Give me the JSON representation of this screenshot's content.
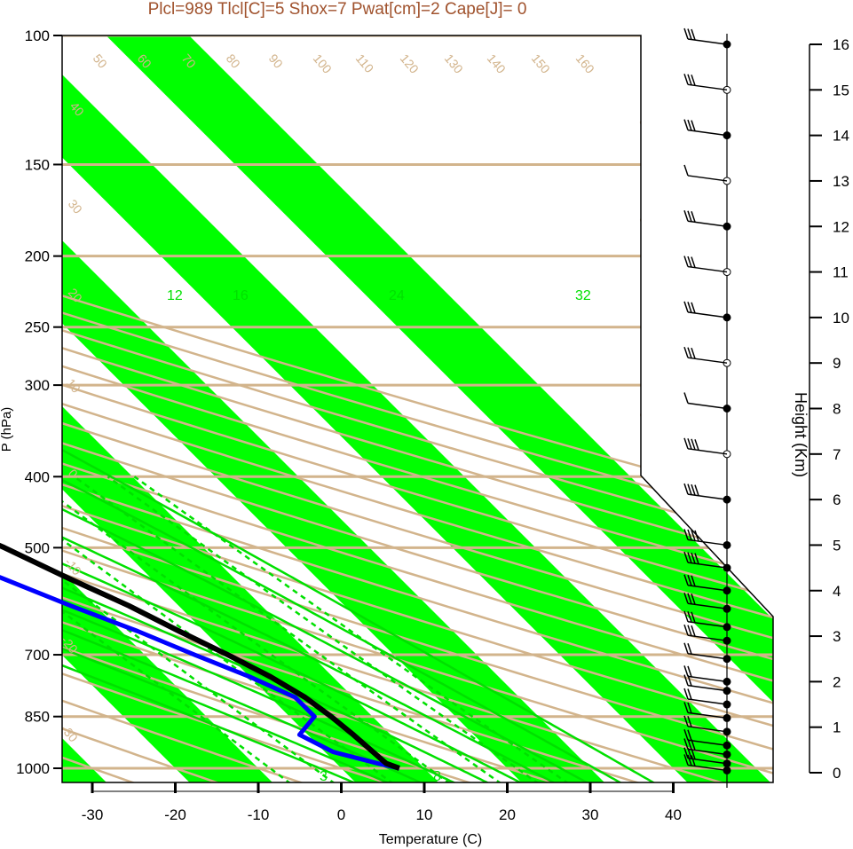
{
  "title": "Plcl=989 Tlcl[C]=5 Shox=7 Pwat[cm]=2 Cape[J]= 0",
  "colors": {
    "title": "#a0522d",
    "isotherm_band": "#00ff00",
    "background_lines": "#d2b48c",
    "mixing_ratio": "#00e000",
    "temperature": "#000000",
    "dewpoint": "#0000ff"
  },
  "chart_data": {
    "type": "skew-t log-p",
    "xlabel": "Temperature (C)",
    "ylabel": "P (hPa)",
    "y2label": "Height (Km)",
    "xlim": [
      -34,
      50
    ],
    "ylim": [
      1050,
      100
    ],
    "x_ticks": [
      -30,
      -20,
      -10,
      0,
      10,
      20,
      30,
      40
    ],
    "pressure_ticks": [
      100,
      150,
      200,
      250,
      300,
      400,
      500,
      700,
      850,
      1000
    ],
    "height_ticks": [
      0,
      1,
      2,
      3,
      4,
      5,
      6,
      7,
      8,
      9,
      10,
      11,
      12,
      13,
      14,
      15,
      16
    ],
    "dry_adiabat_labels": [
      "50",
      "60",
      "70",
      "80",
      "90",
      "100",
      "110",
      "120",
      "130",
      "140",
      "150",
      "160",
      "40",
      "30",
      "20",
      "10",
      "0",
      "-10",
      "-20",
      "-30"
    ],
    "moist_adiabat_labels": [
      "12",
      "16",
      "24",
      "32"
    ],
    "mixing_ratio_labels": [
      "3",
      "8"
    ],
    "isotherm_labels": [
      "-30",
      "-20",
      "-10",
      "0",
      "10",
      "20",
      "30"
    ],
    "temperature_profile": {
      "pressure": [
        1000,
        985,
        950,
        900,
        850,
        800,
        750,
        700,
        650,
        600,
        550,
        500,
        450,
        400,
        350,
        300,
        250,
        220,
        200,
        180,
        150,
        120,
        100
      ],
      "temperature": [
        7,
        6,
        5.8,
        5.5,
        5,
        4.2,
        2.5,
        0,
        -3,
        -6,
        -10,
        -14,
        -19,
        -24,
        -30,
        -37,
        -47,
        -50,
        -51,
        -53,
        -56,
        -57,
        -58
      ]
    },
    "dewpoint_profile": {
      "pressure": [
        1000,
        985,
        950,
        900,
        850,
        800,
        750,
        700,
        650,
        600,
        550,
        500,
        450,
        400,
        350,
        300,
        250,
        220,
        200,
        175,
        150,
        120,
        100
      ],
      "dewpoint": [
        7,
        5,
        1,
        -1,
        3,
        3,
        0,
        -4,
        -8,
        -13,
        -18,
        -23,
        -28,
        -34,
        -40,
        -47,
        -56,
        -59,
        -61,
        -67,
        -72,
        -74,
        -76
      ]
    },
    "wind_heights_km": [
      0.05,
      0.2,
      0.4,
      0.6,
      0.9,
      1.2,
      1.5,
      1.8,
      2.0,
      2.5,
      2.9,
      3.2,
      3.6,
      4.0,
      4.5,
      5.0,
      6.0,
      7.0,
      8.0,
      9.0,
      10.0,
      11.0,
      12.0,
      13.0,
      14.0,
      15.0,
      16.0
    ],
    "wind_speed_kt": [
      25,
      25,
      25,
      20,
      20,
      15,
      15,
      15,
      20,
      20,
      25,
      25,
      30,
      30,
      35,
      35,
      40,
      40,
      10,
      30,
      30,
      30,
      30,
      10,
      30,
      30,
      30
    ]
  }
}
